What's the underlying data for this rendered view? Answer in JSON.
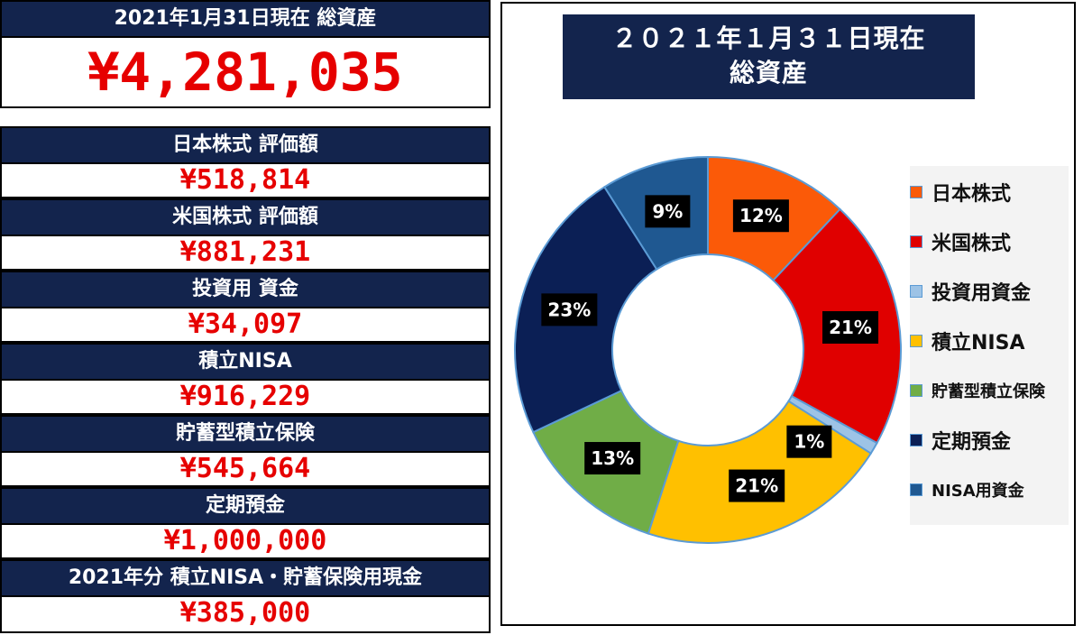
{
  "summary": {
    "total_label": "2021年1月31日現在 総資産",
    "total_value": "¥4,281,035",
    "rows": [
      {
        "label": "日本株式 評価額",
        "value": "¥518,814"
      },
      {
        "label": "米国株式 評価額",
        "value": "¥881,231"
      },
      {
        "label": "投資用 資金",
        "value": "¥34,097"
      },
      {
        "label": "積立NISA",
        "value": "¥916,229"
      },
      {
        "label": "貯蓄型積立保険",
        "value": "¥545,664"
      },
      {
        "label": "定期預金",
        "value": "¥1,000,000"
      },
      {
        "label": "2021年分 積立NISA・貯蓄保険用現金",
        "value": "¥385,000"
      }
    ]
  },
  "chart_data": {
    "type": "pie",
    "title": "２０２１年１月３１日現在 総資産",
    "title_lines": [
      "２０２１年１月３１日現在",
      "総資産"
    ],
    "categories": [
      "日本株式",
      "米国株式",
      "投資用資金",
      "積立NISA",
      "貯蓄型積立保険",
      "定期預金",
      "NISA用資金"
    ],
    "values": [
      12,
      21,
      1,
      21,
      13,
      23,
      9
    ],
    "labels": [
      "12%",
      "21%",
      "1%",
      "21%",
      "13%",
      "23%",
      "9%"
    ],
    "colors": [
      "#fb5a08",
      "#e00000",
      "#9dc3e6",
      "#ffc000",
      "#70ad47",
      "#0b1f55",
      "#1f5891"
    ],
    "donut": true,
    "legend_position": "right"
  }
}
